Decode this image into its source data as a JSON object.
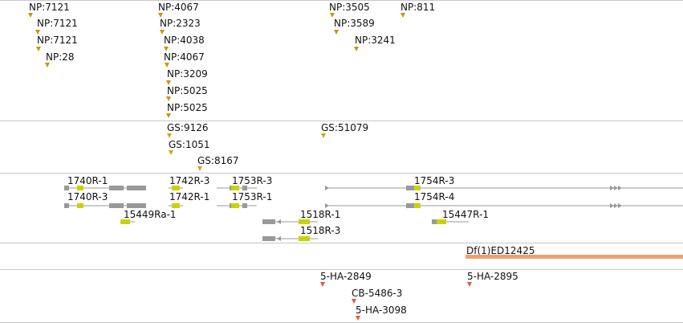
{
  "colors": {
    "np_marker": "#c8940a",
    "gs_marker": "#d4a21e",
    "ha_marker": "#ee5533",
    "intron_line": "#999999",
    "utr": "#999999",
    "cds": "#c8d400",
    "deficiency": "#f0a070",
    "separator": "#c8c8c8"
  },
  "np_insertions": [
    {
      "label": "NP:7121"
    },
    {
      "label": "NP:7121"
    },
    {
      "label": "NP:7121"
    },
    {
      "label": "NP:28"
    },
    {
      "label": "NP:4067"
    },
    {
      "label": "NP:2323"
    },
    {
      "label": "NP:4038"
    },
    {
      "label": "NP:4067"
    },
    {
      "label": "NP:3209"
    },
    {
      "label": "NP:5025"
    },
    {
      "label": "NP:5025"
    },
    {
      "label": "NP:3505"
    },
    {
      "label": "NP:3589"
    },
    {
      "label": "NP:3241"
    },
    {
      "label": "NP:811"
    }
  ],
  "gs_insertions": [
    {
      "label": "GS:9126"
    },
    {
      "label": "GS:1051"
    },
    {
      "label": "GS:8167"
    },
    {
      "label": "GS:51079"
    }
  ],
  "transcripts": [
    {
      "label": "1740R-1"
    },
    {
      "label": "1740R-3"
    },
    {
      "label": "15449Ra-1"
    },
    {
      "label": "1742R-3"
    },
    {
      "label": "1742R-1"
    },
    {
      "label": "1753R-3"
    },
    {
      "label": "1753R-1"
    },
    {
      "label": "1518R-1"
    },
    {
      "label": "1518R-3"
    },
    {
      "label": "1754R-3"
    },
    {
      "label": "1754R-4"
    },
    {
      "label": "15447R-1"
    }
  ],
  "deficiencies": [
    {
      "label": "Df(1)ED12425"
    }
  ],
  "ha_insertions": [
    {
      "label": "5-HA-2849"
    },
    {
      "label": "CB-5486-3"
    },
    {
      "label": "5-HA-3098"
    },
    {
      "label": "5-HA-2895"
    }
  ]
}
